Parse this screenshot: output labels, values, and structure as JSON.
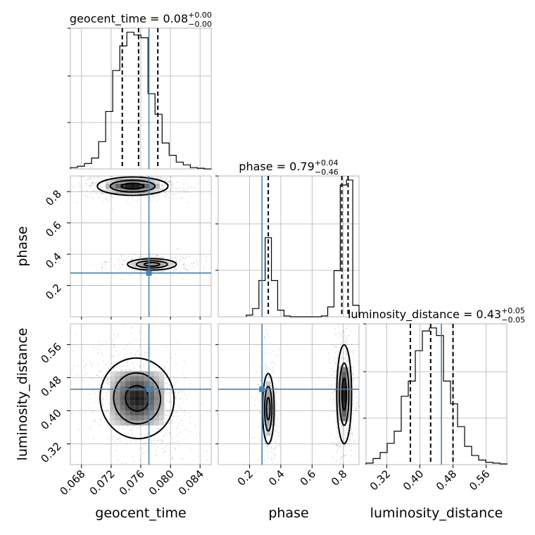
{
  "chart_data": {
    "type": "corner",
    "parameters": [
      "geocent_time",
      "phase",
      "luminosity_distance"
    ],
    "truths": {
      "geocent_time": 0.0771,
      "phase": 0.28,
      "luminosity_distance": 0.452
    },
    "marginals": [
      {
        "parameter": "geocent_time",
        "title": {
          "main": "geocent_time = 0.08",
          "plus": "+0.00",
          "minus": "−0.00"
        },
        "xlim": [
          0.0665,
          0.0855
        ],
        "quantiles": [
          0.0735,
          0.0757,
          0.0783
        ],
        "bins": [
          0.0665,
          0.067452,
          0.068404,
          0.069356,
          0.070308,
          0.07126,
          0.072212,
          0.073164,
          0.074116,
          0.075068,
          0.07602,
          0.076972,
          0.077924,
          0.078876,
          0.079828,
          0.08078,
          0.081732,
          0.082684,
          0.083636,
          0.084588,
          0.08554
        ],
        "values": [
          1,
          2,
          4,
          8,
          20,
          42,
          72,
          90,
          100,
          98,
          96,
          55,
          40,
          19,
          10,
          5,
          3,
          1,
          0.5,
          0
        ]
      },
      {
        "parameter": "phase",
        "title": {
          "main": "phase = 0.79",
          "plus": "+0.04",
          "minus": "−0.46"
        },
        "xlim": [
          0.0,
          0.9
        ],
        "quantiles": [
          0.32,
          0.79,
          0.83
        ],
        "bins": [
          0.18,
          0.22,
          0.26,
          0.3,
          0.34,
          0.38,
          0.42,
          0.46,
          0.5,
          0.54,
          0.58,
          0.62,
          0.66,
          0.7,
          0.74,
          0.78,
          0.82,
          0.86,
          0.9
        ],
        "values": [
          1,
          5,
          22,
          48,
          22,
          4,
          0.5,
          0,
          0,
          0,
          0,
          0,
          0.5,
          6,
          28,
          80,
          83,
          7
        ]
      },
      {
        "parameter": "luminosity_distance",
        "title": {
          "main": "luminosity_distance = 0.43",
          "plus": "+0.05",
          "minus": "−0.05"
        },
        "xlim": [
          0.27,
          0.61
        ],
        "quantiles": [
          0.377,
          0.426,
          0.48
        ],
        "bins": [
          0.27,
          0.287,
          0.304,
          0.321,
          0.338,
          0.355,
          0.372,
          0.389,
          0.406,
          0.423,
          0.44,
          0.457,
          0.474,
          0.491,
          0.508,
          0.525,
          0.542,
          0.559,
          0.576,
          0.593,
          0.61
        ],
        "values": [
          1,
          4,
          8,
          14,
          22,
          45,
          55,
          75,
          88,
          90,
          85,
          55,
          40,
          25,
          12,
          6,
          3,
          1.5,
          1,
          0.5
        ]
      }
    ],
    "axes": {
      "geocent_time": {
        "ticks": [
          0.068,
          0.072,
          0.076,
          0.08,
          0.084
        ],
        "labels": [
          "0.068",
          "0.072",
          "0.076",
          "0.080",
          "0.084"
        ]
      },
      "phase": {
        "ticks": [
          0.2,
          0.4,
          0.6,
          0.8
        ],
        "labels": [
          "0.2",
          "0.4",
          "0.6",
          "0.8"
        ]
      },
      "luminosity_distance": {
        "ticks": [
          0.32,
          0.4,
          0.48,
          0.56
        ],
        "labels": [
          "0.32",
          "0.40",
          "0.48",
          "0.56"
        ]
      }
    },
    "grid": true,
    "colors": {
      "truth": "#4682b4",
      "contour": "#000000",
      "histogram": "#000000"
    }
  }
}
